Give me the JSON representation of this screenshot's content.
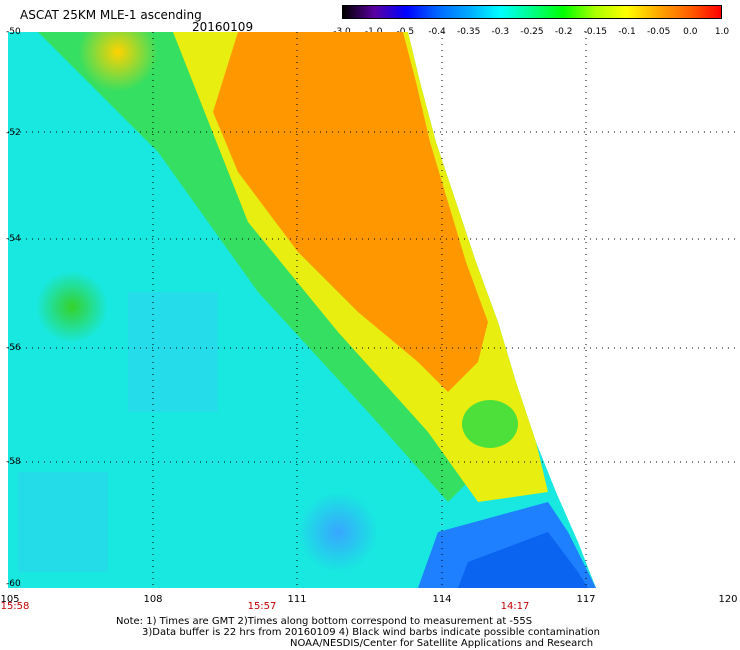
{
  "header": {
    "title": "ASCAT 25KM MLE-1 ascending",
    "date": "20160109"
  },
  "colorbar": {
    "labels": [
      "-3.0",
      "-1.0",
      "-0.5",
      "-0.4",
      "-0.35",
      "-0.3",
      "-0.25",
      "-0.2",
      "-0.15",
      "-0.1",
      "-0.05",
      "0.0",
      "1.0"
    ],
    "colors": [
      "#000000",
      "#5a00a0",
      "#0000ff",
      "#0066ff",
      "#00aaff",
      "#00ffff",
      "#00ff88",
      "#00ff00",
      "#aaff00",
      "#ffff00",
      "#ffaa00",
      "#ff6000",
      "#ff0000"
    ]
  },
  "map": {
    "lat_labels": [
      "-50",
      "-52",
      "-54",
      "-56",
      "-58",
      "-60"
    ],
    "lon_labels": [
      "105",
      "108",
      "111",
      "114",
      "117",
      "120"
    ],
    "times": [
      "15:58",
      "15:57",
      "14:17"
    ]
  },
  "footer": {
    "line1": "Note: 1) Times are GMT 2)Times along bottom correspond to measurement at -55S",
    "line2": "3)Data buffer is 22 hrs from 20160109 4) Black wind barbs indicate possible contamination",
    "line3": "NOAA/NESDIS/Center for Satellite Applications and Research"
  }
}
